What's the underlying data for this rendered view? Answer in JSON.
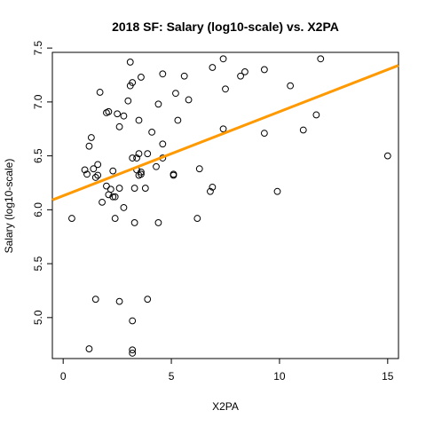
{
  "chart_data": {
    "type": "scatter",
    "title": "2018 SF: Salary (log10-scale) vs. X2PA",
    "xlabel": "X2PA",
    "ylabel": "Salary (log10-scale)",
    "xlim": [
      -0.5,
      15.5
    ],
    "ylim": [
      4.62,
      7.46
    ],
    "x_ticks": [
      0,
      5,
      10,
      15
    ],
    "x_tick_labels": [
      "0",
      "5",
      "10",
      "15"
    ],
    "y_ticks": [
      5.0,
      5.5,
      6.0,
      6.5,
      7.0,
      7.5
    ],
    "y_tick_labels": [
      "5.0",
      "5.5",
      "6.0",
      "6.5",
      "7.0",
      "7.5"
    ],
    "grid": false,
    "series": [
      {
        "name": "players",
        "marker": "open-circle",
        "color": "#000000",
        "points": [
          [
            0.4,
            5.92
          ],
          [
            1.0,
            6.37
          ],
          [
            1.1,
            6.33
          ],
          [
            1.2,
            6.59
          ],
          [
            1.3,
            6.67
          ],
          [
            1.4,
            6.38
          ],
          [
            1.5,
            6.3
          ],
          [
            1.6,
            6.42
          ],
          [
            1.6,
            6.32
          ],
          [
            1.7,
            7.09
          ],
          [
            1.8,
            6.07
          ],
          [
            2.0,
            6.9
          ],
          [
            2.0,
            6.22
          ],
          [
            2.1,
            6.91
          ],
          [
            2.1,
            6.14
          ],
          [
            2.2,
            6.19
          ],
          [
            2.3,
            6.36
          ],
          [
            2.3,
            6.12
          ],
          [
            2.4,
            5.92
          ],
          [
            2.4,
            6.12
          ],
          [
            2.5,
            6.89
          ],
          [
            2.6,
            6.77
          ],
          [
            2.6,
            6.2
          ],
          [
            2.8,
            6.87
          ],
          [
            2.8,
            6.02
          ],
          [
            3.0,
            7.01
          ],
          [
            3.1,
            7.15
          ],
          [
            3.1,
            7.37
          ],
          [
            3.2,
            7.18
          ],
          [
            3.2,
            6.48
          ],
          [
            3.3,
            6.2
          ],
          [
            3.3,
            5.88
          ],
          [
            3.4,
            6.37
          ],
          [
            3.4,
            6.48
          ],
          [
            3.5,
            6.83
          ],
          [
            3.5,
            6.52
          ],
          [
            3.5,
            6.32
          ],
          [
            3.6,
            6.35
          ],
          [
            3.6,
            6.33
          ],
          [
            3.6,
            7.23
          ],
          [
            3.8,
            6.2
          ],
          [
            3.9,
            6.52
          ],
          [
            4.1,
            6.72
          ],
          [
            4.3,
            6.4
          ],
          [
            4.4,
            6.98
          ],
          [
            4.4,
            5.88
          ],
          [
            4.6,
            7.26
          ],
          [
            4.6,
            6.61
          ],
          [
            4.6,
            6.48
          ],
          [
            5.1,
            6.33
          ],
          [
            5.1,
            6.32
          ],
          [
            5.2,
            7.08
          ],
          [
            5.3,
            6.83
          ],
          [
            5.6,
            7.24
          ],
          [
            5.8,
            7.02
          ],
          [
            6.2,
            5.92
          ],
          [
            6.3,
            6.38
          ],
          [
            6.8,
            6.17
          ],
          [
            6.9,
            6.21
          ],
          [
            6.9,
            7.32
          ],
          [
            7.4,
            7.4
          ],
          [
            7.4,
            6.75
          ],
          [
            7.5,
            7.12
          ],
          [
            8.2,
            7.24
          ],
          [
            8.4,
            7.28
          ],
          [
            9.3,
            7.3
          ],
          [
            9.3,
            6.71
          ],
          [
            9.9,
            6.17
          ],
          [
            10.5,
            7.15
          ],
          [
            11.1,
            6.74
          ],
          [
            11.7,
            6.88
          ],
          [
            11.9,
            7.4
          ],
          [
            15.0,
            6.5
          ],
          [
            1.5,
            5.17
          ],
          [
            2.6,
            5.15
          ],
          [
            3.9,
            5.17
          ],
          [
            3.2,
            4.97
          ],
          [
            1.2,
            4.71
          ],
          [
            3.2,
            4.7
          ],
          [
            3.2,
            4.67
          ]
        ]
      }
    ],
    "fit_line": {
      "name": "regression",
      "color": "#FF9900",
      "intercept": 6.13,
      "slope": 0.078
    }
  }
}
